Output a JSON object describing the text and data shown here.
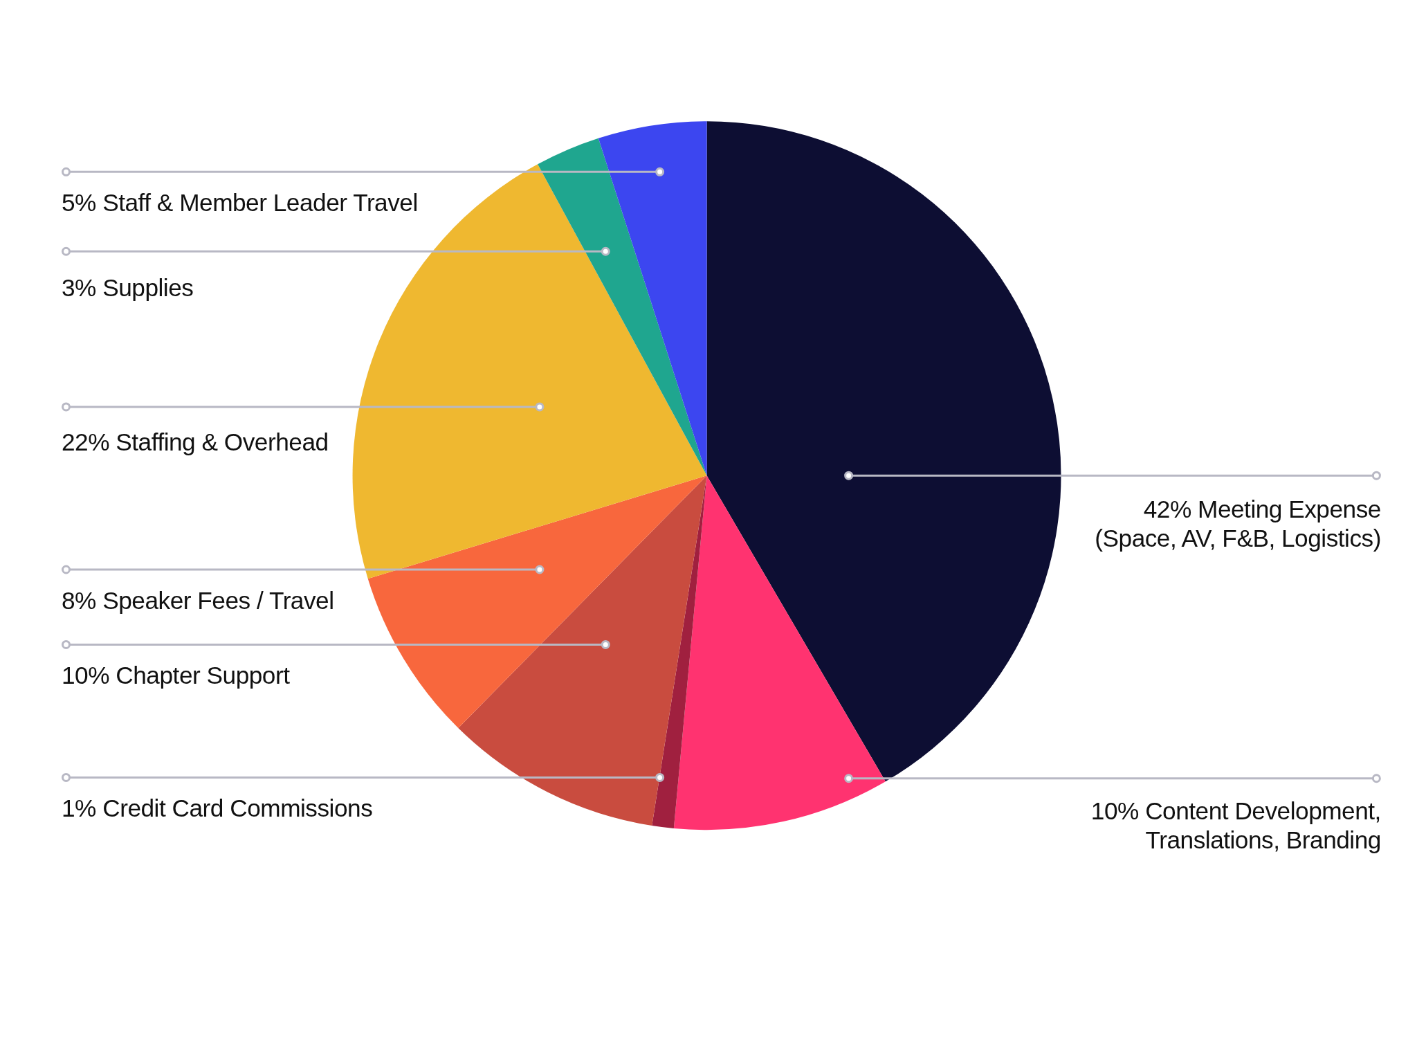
{
  "chart_data": {
    "type": "pie",
    "categories": [
      "Meeting Expense\n(Space, AV, F&B, Logistics)",
      "Content Development,\nTranslations, Branding",
      "Credit Card Commissions",
      "Chapter Support",
      "Speaker Fees / Travel",
      "Staffing & Overhead",
      "Supplies",
      "Staff & Member Leader Travel"
    ],
    "values": [
      42,
      10,
      1,
      10,
      8,
      22,
      3,
      5
    ],
    "value_labels": [
      "42%",
      "10%",
      "1%",
      "10%",
      "8%",
      "22%",
      "3%",
      "5%"
    ],
    "colors": [
      "#0d0e33",
      "#ff3370",
      "#a0203f",
      "#c94c3f",
      "#f8673d",
      "#efb830",
      "#1fa68f",
      "#3c46f0"
    ]
  }
}
